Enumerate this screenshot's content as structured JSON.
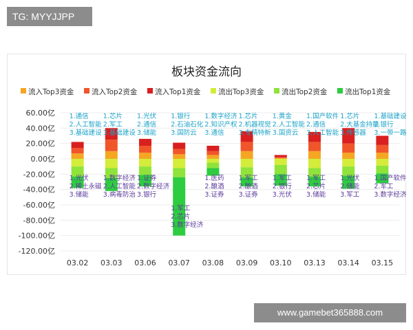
{
  "badges": {
    "top_left": "TG: MYYJJPP",
    "bottom_right": "www.gamebet365888.com"
  },
  "chart_data": {
    "type": "bar",
    "stacked": true,
    "title": "板块资金流向",
    "categories": [
      "03.02",
      "03.03",
      "03.06",
      "03.07",
      "03.08",
      "03.09",
      "03.10",
      "03.13",
      "03.14",
      "03.15"
    ],
    "y_ticks": [
      "-120.00亿",
      "-100.00亿",
      "-80.00亿",
      "-60.00亿",
      "-40.00亿",
      "-20.00亿",
      "0.00亿",
      "20.00亿",
      "40.00亿",
      "60.00亿"
    ],
    "ylim": [
      -120,
      60
    ],
    "unit": "亿",
    "legend_position": "top",
    "series": [
      {
        "name": "流入Top3资金",
        "color": "#f5a623",
        "values": [
          7,
          10,
          8,
          6,
          5,
          10,
          1,
          10,
          8,
          8
        ]
      },
      {
        "name": "流入Top2资金",
        "color": "#f0562a",
        "values": [
          7,
          15,
          9,
          7,
          5,
          12,
          1,
          12,
          12,
          10
        ]
      },
      {
        "name": "流入Top1资金",
        "color": "#d91f1f",
        "values": [
          8,
          15,
          9,
          8,
          7,
          14,
          3,
          13,
          20,
          12
        ]
      },
      {
        "name": "流出Top3资金",
        "color": "#d4ec3a",
        "values": [
          -10,
          -12,
          -10,
          -12,
          -5,
          -11,
          -8,
          -12,
          -10,
          -9
        ]
      },
      {
        "name": "流出Top2资金",
        "color": "#8fe33a",
        "values": [
          -13,
          -13,
          -11,
          -12,
          -7,
          -13,
          -12,
          -11,
          -12,
          -10
        ]
      },
      {
        "name": "流出Top1资金",
        "color": "#2ecc40",
        "values": [
          -15,
          -17,
          -15,
          -76,
          -10,
          -12,
          -15,
          -13,
          -17,
          -13
        ]
      }
    ],
    "inflow_labels": [
      [
        "1.通信",
        "2.人工智能",
        "3.基础建设"
      ],
      [
        "1.芯片",
        "2.军工",
        "3.基础建设"
      ],
      [
        "1.光伏",
        "2.通信",
        "3.储能"
      ],
      [
        "1.银行",
        "2.石油石化",
        "3.国防云"
      ],
      [
        "1.数字经济",
        "2.知识产权",
        "3.通信"
      ],
      [
        "1.芯片",
        "2.机器视觉",
        "3.专精特新"
      ],
      [
        "1.黄金",
        "2.人工智能",
        "3.国资云"
      ],
      [
        "1.国产软件",
        "2.通信",
        "3.人工智能"
      ],
      [
        "1.芯片",
        "2.大基金持股",
        "3.传感器"
      ],
      [
        "1.基础建设",
        "2.银行",
        "3.一带一路"
      ]
    ],
    "outflow_labels": [
      [
        "1.光伏",
        "2.稀土永磁",
        "3.储能"
      ],
      [
        "1.数字经济",
        "2.人工智能",
        "3.病毒防治"
      ],
      [
        "1.证券",
        "2.数字经济",
        "3.银行"
      ],
      [
        "1.军工",
        "2.芯片",
        "3.数字经济"
      ],
      [
        "1.医药",
        "2.酿酒",
        "3.证券"
      ],
      [
        "1.军工",
        "2.酿酒",
        "3.证券"
      ],
      [
        "1.军工",
        "2.银行",
        "3.光伏"
      ],
      [
        "1.军工",
        "2.芯片",
        "3.储能"
      ],
      [
        "1.光伏",
        "2.储能",
        "3.军工"
      ],
      [
        "1.国产软件",
        "2.军工",
        "3.数字经济"
      ]
    ]
  }
}
